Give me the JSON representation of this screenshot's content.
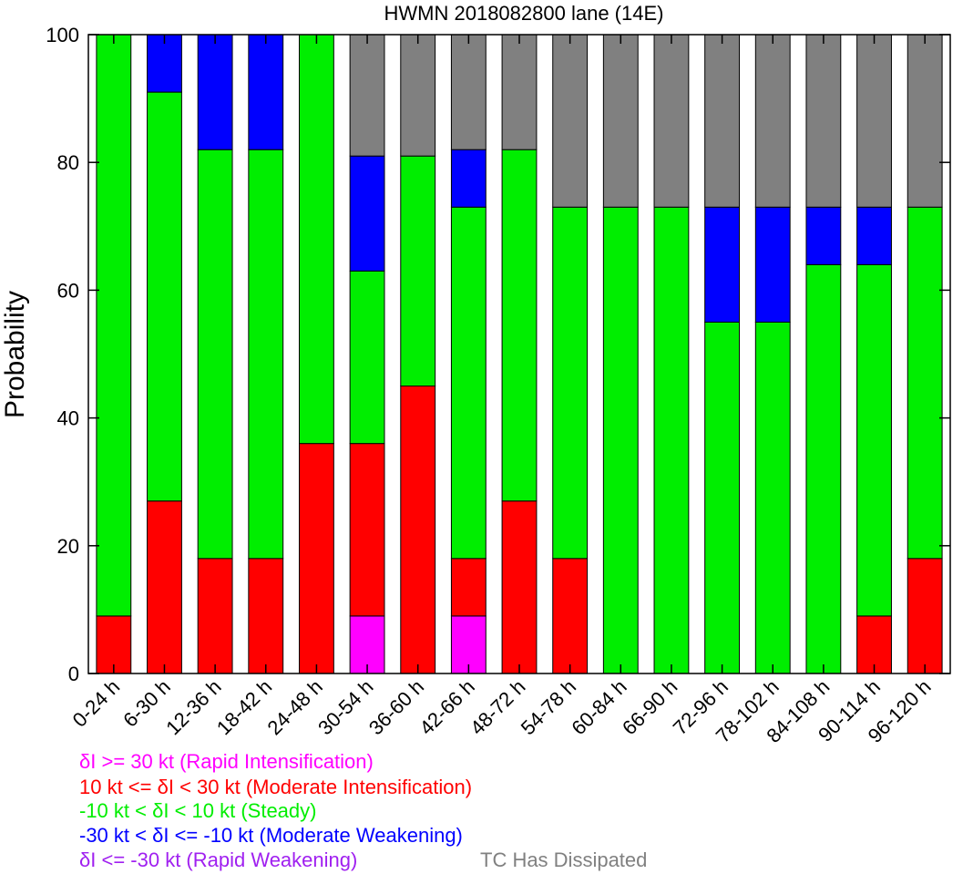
{
  "chart_data": {
    "type": "bar",
    "stacked": true,
    "title": "HWMN 2018082800 lane (14E)",
    "xlabel": "",
    "ylabel": "Probability",
    "ylim": [
      0,
      100
    ],
    "yticks": [
      "0",
      "20",
      "40",
      "60",
      "80",
      "100"
    ],
    "categories": [
      "0-24 h",
      "6-30 h",
      "12-36 h",
      "18-42 h",
      "24-48 h",
      "30-54 h",
      "36-60 h",
      "42-66 h",
      "48-72 h",
      "54-78 h",
      "60-84 h",
      "66-90 h",
      "72-96 h",
      "78-102 h",
      "84-108 h",
      "90-114 h",
      "96-120 h"
    ],
    "series": [
      {
        "name": "δI >= 30 kt (Rapid Intensification)",
        "color": "#ff00ff",
        "values": [
          0,
          0,
          0,
          0,
          0,
          9,
          0,
          9,
          0,
          0,
          0,
          0,
          0,
          0,
          0,
          0,
          0
        ]
      },
      {
        "name": "10 kt <= δI < 30 kt (Moderate Intensification)",
        "color": "#ff0000",
        "values": [
          9,
          27,
          18,
          18,
          36,
          27,
          45,
          9,
          27,
          18,
          0,
          0,
          0,
          0,
          0,
          9,
          18
        ]
      },
      {
        "name": "-10 kt < δI < 10 kt (Steady)",
        "color": "#00ee00",
        "values": [
          91,
          64,
          64,
          64,
          64,
          27,
          36,
          55,
          55,
          55,
          73,
          73,
          55,
          55,
          64,
          55,
          55
        ]
      },
      {
        "name": "-30 kt < δI <= -10 kt (Moderate Weakening)",
        "color": "#0000ff",
        "values": [
          0,
          9,
          18,
          18,
          0,
          18,
          0,
          9,
          0,
          0,
          0,
          0,
          18,
          18,
          9,
          9,
          0
        ]
      },
      {
        "name": "δI <= -30 kt (Rapid Weakening)",
        "color": "#a020f0",
        "values": [
          0,
          0,
          0,
          0,
          0,
          0,
          0,
          0,
          0,
          0,
          0,
          0,
          0,
          0,
          0,
          0,
          0
        ]
      },
      {
        "name": "TC Has Dissipated",
        "color": "#808080",
        "values": [
          0,
          0,
          0,
          0,
          0,
          19,
          19,
          18,
          18,
          27,
          27,
          27,
          27,
          27,
          27,
          27,
          27
        ]
      }
    ],
    "legend": [
      {
        "text": "δI >= 30 kt (Rapid Intensification)",
        "color": "#ff00ff"
      },
      {
        "text": "10 kt <= δI < 30 kt (Moderate Intensification)",
        "color": "#ff0000"
      },
      {
        "text": "-10 kt < δI < 10 kt (Steady)",
        "color": "#00ee00"
      },
      {
        "text": "-30 kt < δI <= -10 kt (Moderate Weakening)",
        "color": "#0000ff"
      },
      {
        "text": "δI <= -30 kt (Rapid Weakening)",
        "color": "#a020f0"
      },
      {
        "text": "TC Has Dissipated",
        "color": "#808080"
      }
    ],
    "legend_placement": "bottom",
    "grid": false
  }
}
